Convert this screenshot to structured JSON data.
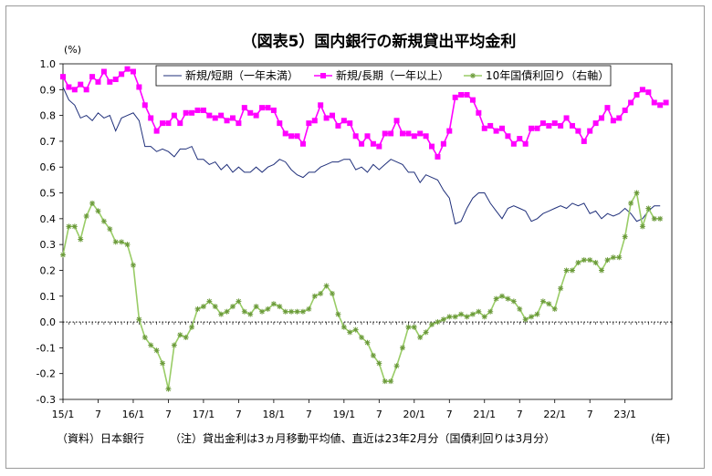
{
  "chart_data": {
    "type": "line",
    "title": "（図表5）国内銀行の新規貸出平均金利",
    "y_unit": "(%)",
    "x_unit": "(年)",
    "ylim": [
      -0.3,
      1.0
    ],
    "y_ticks": [
      "1.0",
      "0.9",
      "0.8",
      "0.7",
      "0.6",
      "0.5",
      "0.4",
      "0.3",
      "0.2",
      "0.1",
      "0.0",
      "-0.1",
      "-0.2",
      "-0.3"
    ],
    "x_ticks": [
      "15/1",
      "7",
      "16/1",
      "7",
      "17/1",
      "7",
      "18/1",
      "7",
      "19/1",
      "7",
      "20/1",
      "7",
      "21/1",
      "7",
      "22/1",
      "7",
      "23/1"
    ],
    "x_tick_month_index": [
      0,
      6,
      12,
      18,
      24,
      30,
      36,
      42,
      48,
      54,
      60,
      66,
      72,
      78,
      84,
      90,
      96
    ],
    "grid": false,
    "legend_placement": "top",
    "source_note": "（資料）日本銀行",
    "footnote": "（注）貸出金利は3ヵ月移動平均値、直近は23年2月分（国債利回りは3月分）",
    "series": [
      {
        "name": "新規/短期（一年未満）",
        "color": "#1f2f7a",
        "marker": "none",
        "start_month_index": 0,
        "values": [
          0.91,
          0.86,
          0.84,
          0.79,
          0.8,
          0.78,
          0.81,
          0.79,
          0.8,
          0.74,
          0.79,
          0.8,
          0.81,
          0.78,
          0.68,
          0.68,
          0.66,
          0.67,
          0.66,
          0.64,
          0.67,
          0.67,
          0.68,
          0.63,
          0.63,
          0.61,
          0.62,
          0.59,
          0.61,
          0.58,
          0.6,
          0.58,
          0.58,
          0.6,
          0.58,
          0.6,
          0.61,
          0.63,
          0.62,
          0.59,
          0.57,
          0.56,
          0.58,
          0.58,
          0.6,
          0.61,
          0.62,
          0.62,
          0.63,
          0.63,
          0.59,
          0.6,
          0.58,
          0.61,
          0.59,
          0.61,
          0.63,
          0.62,
          0.61,
          0.58,
          0.58,
          0.54,
          0.57,
          0.56,
          0.55,
          0.51,
          0.48,
          0.38,
          0.39,
          0.44,
          0.48,
          0.5,
          0.5,
          0.46,
          0.43,
          0.4,
          0.44,
          0.45,
          0.44,
          0.43,
          0.39,
          0.4,
          0.42,
          0.43,
          0.44,
          0.45,
          0.44,
          0.46,
          0.45,
          0.46,
          0.42,
          0.43,
          0.4,
          0.42,
          0.41,
          0.42,
          0.44,
          0.42,
          0.39,
          0.4,
          0.43,
          0.45,
          0.45
        ]
      },
      {
        "name": "新規/長期（一年以上）",
        "color": "#ff00ff",
        "marker": "square",
        "start_month_index": 0,
        "values": [
          0.95,
          0.91,
          0.9,
          0.92,
          0.9,
          0.95,
          0.93,
          0.97,
          0.93,
          0.94,
          0.96,
          0.98,
          0.97,
          0.91,
          0.84,
          0.79,
          0.74,
          0.77,
          0.77,
          0.8,
          0.77,
          0.81,
          0.81,
          0.82,
          0.82,
          0.8,
          0.79,
          0.8,
          0.78,
          0.79,
          0.77,
          0.83,
          0.81,
          0.8,
          0.83,
          0.83,
          0.82,
          0.77,
          0.73,
          0.72,
          0.72,
          0.69,
          0.77,
          0.78,
          0.84,
          0.79,
          0.8,
          0.76,
          0.78,
          0.77,
          0.72,
          0.69,
          0.72,
          0.69,
          0.68,
          0.73,
          0.73,
          0.78,
          0.73,
          0.73,
          0.72,
          0.73,
          0.72,
          0.68,
          0.64,
          0.69,
          0.74,
          0.87,
          0.88,
          0.88,
          0.86,
          0.81,
          0.75,
          0.76,
          0.74,
          0.75,
          0.72,
          0.69,
          0.71,
          0.69,
          0.75,
          0.75,
          0.77,
          0.76,
          0.77,
          0.76,
          0.79,
          0.76,
          0.74,
          0.7,
          0.74,
          0.77,
          0.79,
          0.83,
          0.78,
          0.79,
          0.82,
          0.85,
          0.88,
          0.9,
          0.89,
          0.85,
          0.84,
          0.85
        ]
      },
      {
        "name": "10年国債利回り（右軸）",
        "color": "#99cc66",
        "marker": "star",
        "start_month_index": 0,
        "values": [
          0.26,
          0.37,
          0.37,
          0.32,
          0.41,
          0.46,
          0.43,
          0.39,
          0.36,
          0.31,
          0.31,
          0.3,
          0.22,
          0.01,
          -0.06,
          -0.09,
          -0.11,
          -0.16,
          -0.26,
          -0.09,
          -0.05,
          -0.06,
          -0.02,
          0.05,
          0.06,
          0.08,
          0.06,
          0.03,
          0.04,
          0.06,
          0.08,
          0.04,
          0.03,
          0.06,
          0.04,
          0.05,
          0.07,
          0.06,
          0.04,
          0.04,
          0.04,
          0.04,
          0.05,
          0.1,
          0.11,
          0.14,
          0.11,
          0.03,
          -0.02,
          -0.04,
          -0.03,
          -0.06,
          -0.08,
          -0.13,
          -0.16,
          -0.23,
          -0.23,
          -0.17,
          -0.1,
          -0.02,
          -0.02,
          -0.06,
          -0.04,
          -0.01,
          0.0,
          0.01,
          0.02,
          0.02,
          0.03,
          0.02,
          0.03,
          0.04,
          0.02,
          0.04,
          0.09,
          0.1,
          0.09,
          0.08,
          0.05,
          0.01,
          0.02,
          0.03,
          0.08,
          0.07,
          0.05,
          0.13,
          0.2,
          0.2,
          0.23,
          0.24,
          0.24,
          0.23,
          0.2,
          0.24,
          0.25,
          0.25,
          0.33,
          0.46,
          0.5,
          0.37,
          0.44,
          0.4,
          0.4
        ]
      }
    ]
  }
}
